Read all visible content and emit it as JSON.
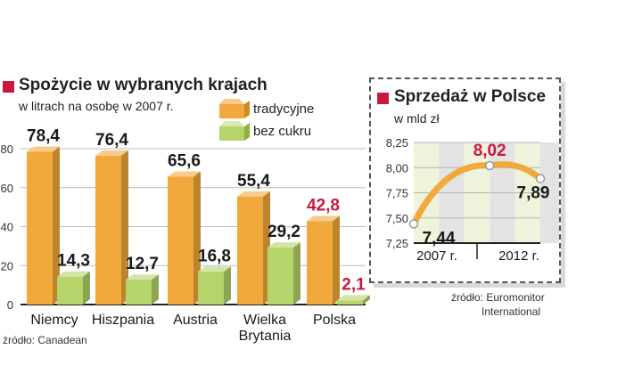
{
  "chart_data": [
    {
      "type": "bar",
      "title": "Spożycie w wybranych krajach",
      "subtitle": "w litrach na osobę w 2007 r.",
      "categories": [
        "Niemcy",
        "Hiszpania",
        "Austria",
        "Wielka Brytania",
        "Polska"
      ],
      "category_lines": [
        [
          "Niemcy"
        ],
        [
          "Hiszpania"
        ],
        [
          "Austria"
        ],
        [
          "Wielka",
          "Brytania"
        ],
        [
          "Polska"
        ]
      ],
      "series": [
        {
          "name": "tradycyjne",
          "values": [
            78.4,
            76.4,
            65.6,
            55.4,
            42.8
          ],
          "labels": [
            "78,4",
            "76,4",
            "65,6",
            "55,4",
            "42,8"
          ],
          "color": "#f2a93b"
        },
        {
          "name": "bez cukru",
          "values": [
            14.3,
            12.7,
            16.8,
            29.2,
            2.1
          ],
          "labels": [
            "14,3",
            "12,7",
            "16,8",
            "29,2",
            "2,1"
          ],
          "color": "#b5d46a"
        }
      ],
      "highlight_color": "#c8193c",
      "ylim": [
        0,
        80
      ],
      "yticks": [
        0,
        20,
        40,
        60,
        80
      ],
      "ytick_labels": [
        "0",
        "20",
        "40",
        "60",
        "80"
      ],
      "source": "źródło: Canadean"
    },
    {
      "type": "line",
      "title": "Sprzedaż w Polsce",
      "subtitle": "w mld zł",
      "x": [
        2007,
        2008,
        2009,
        2010,
        2011,
        2012
      ],
      "x_tick_labels": [
        "2007 r.",
        "2012 r."
      ],
      "points": [
        {
          "year": 2007,
          "value": 7.44,
          "label": "7,44"
        },
        {
          "year": 2010,
          "value": 8.02,
          "label": "8,02"
        },
        {
          "year": 2012,
          "value": 7.89,
          "label": "7,89"
        }
      ],
      "ylim": [
        7.25,
        8.25
      ],
      "yticks": [
        7.25,
        7.5,
        7.75,
        8.0,
        8.25
      ],
      "ytick_labels": [
        "7,25",
        "7,50",
        "7,75",
        "8,00",
        "8,25"
      ],
      "line_color": "#f2a93b",
      "highlight_color": "#c8193c",
      "source_lines": [
        "źródło: Euromonitor",
        "International"
      ]
    }
  ]
}
